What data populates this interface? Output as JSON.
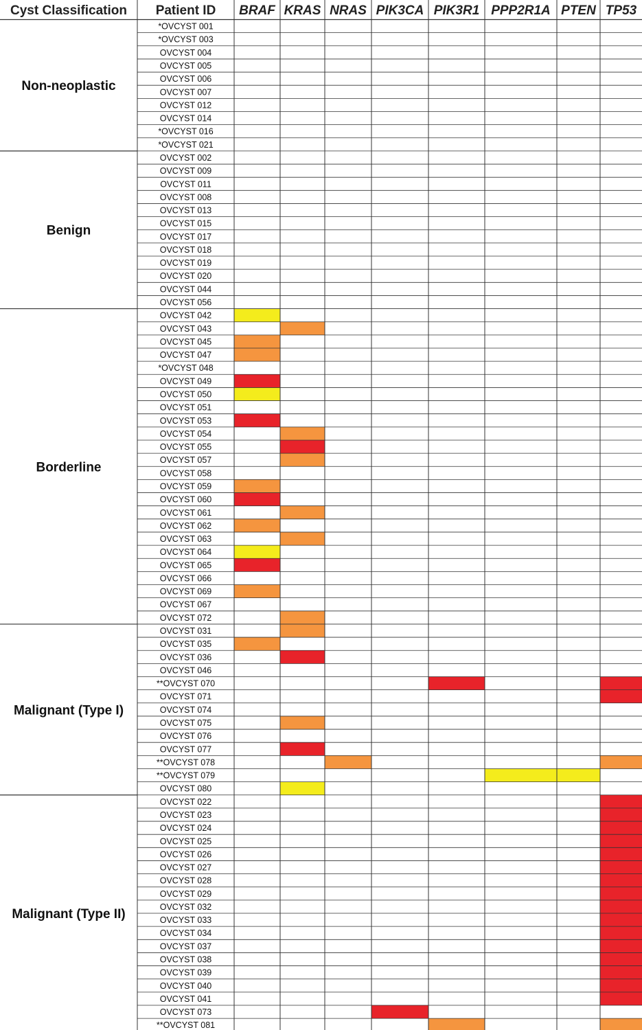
{
  "chart_data": {
    "type": "heatmap",
    "columns": [
      "Cyst Classification",
      "Patient ID"
    ],
    "genes": [
      "BRAF",
      "KRAS",
      "NRAS",
      "PIK3CA",
      "PIK3R1",
      "PPP2R1A",
      "PTEN",
      "TP53"
    ],
    "level_colors": {
      "high": "#e8232a",
      "medium": "#f5953f",
      "low": "#f4ec1c"
    },
    "groups": [
      {
        "name": "Non-neoplastic",
        "rows": [
          {
            "id": "*OVCYST 001",
            "cells": {}
          },
          {
            "id": "*OVCYST 003",
            "cells": {}
          },
          {
            "id": "OVCYST 004",
            "cells": {}
          },
          {
            "id": "OVCYST 005",
            "cells": {}
          },
          {
            "id": "OVCYST 006",
            "cells": {}
          },
          {
            "id": "OVCYST 007",
            "cells": {}
          },
          {
            "id": "OVCYST 012",
            "cells": {}
          },
          {
            "id": "OVCYST 014",
            "cells": {}
          },
          {
            "id": "*OVCYST 016",
            "cells": {}
          },
          {
            "id": "*OVCYST 021",
            "cells": {}
          }
        ]
      },
      {
        "name": "Benign",
        "rows": [
          {
            "id": "OVCYST 002",
            "cells": {}
          },
          {
            "id": "OVCYST 009",
            "cells": {}
          },
          {
            "id": "OVCYST 011",
            "cells": {}
          },
          {
            "id": "OVCYST 008",
            "cells": {}
          },
          {
            "id": "OVCYST 013",
            "cells": {}
          },
          {
            "id": "OVCYST 015",
            "cells": {}
          },
          {
            "id": "OVCYST 017",
            "cells": {}
          },
          {
            "id": "OVCYST 018",
            "cells": {}
          },
          {
            "id": "OVCYST 019",
            "cells": {}
          },
          {
            "id": "OVCYST 020",
            "cells": {}
          },
          {
            "id": "OVCYST 044",
            "cells": {}
          },
          {
            "id": "OVCYST 056",
            "cells": {}
          }
        ]
      },
      {
        "name": "Borderline",
        "rows": [
          {
            "id": "OVCYST 042",
            "cells": {
              "BRAF": "low"
            }
          },
          {
            "id": "OVCYST 043",
            "cells": {
              "KRAS": "medium"
            }
          },
          {
            "id": "OVCYST 045",
            "cells": {
              "BRAF": "medium"
            }
          },
          {
            "id": "OVCYST 047",
            "cells": {
              "BRAF": "medium"
            }
          },
          {
            "id": "*OVCYST 048",
            "cells": {}
          },
          {
            "id": "OVCYST 049",
            "cells": {
              "BRAF": "high"
            }
          },
          {
            "id": "OVCYST 050",
            "cells": {
              "BRAF": "low"
            }
          },
          {
            "id": "OVCYST 051",
            "cells": {}
          },
          {
            "id": "OVCYST 053",
            "cells": {
              "BRAF": "high"
            }
          },
          {
            "id": "OVCYST 054",
            "cells": {
              "KRAS": "medium"
            }
          },
          {
            "id": "OVCYST 055",
            "cells": {
              "KRAS": "high"
            }
          },
          {
            "id": "OVCYST 057",
            "cells": {
              "KRAS": "medium"
            }
          },
          {
            "id": "OVCYST 058",
            "cells": {}
          },
          {
            "id": "OVCYST 059",
            "cells": {
              "BRAF": "medium"
            }
          },
          {
            "id": "OVCYST 060",
            "cells": {
              "BRAF": "high"
            }
          },
          {
            "id": "OVCYST 061",
            "cells": {
              "KRAS": "medium"
            }
          },
          {
            "id": "OVCYST 062",
            "cells": {
              "BRAF": "medium"
            }
          },
          {
            "id": "OVCYST 063",
            "cells": {
              "KRAS": "medium"
            }
          },
          {
            "id": "OVCYST 064",
            "cells": {
              "BRAF": "low"
            }
          },
          {
            "id": "OVCYST 065",
            "cells": {
              "BRAF": "high"
            }
          },
          {
            "id": "OVCYST 066",
            "cells": {}
          },
          {
            "id": "OVCYST 069",
            "cells": {
              "BRAF": "medium"
            }
          },
          {
            "id": "OVCYST 067",
            "cells": {}
          },
          {
            "id": "OVCYST 072",
            "cells": {
              "KRAS": "medium"
            }
          }
        ]
      },
      {
        "name": "Malignant (Type I)",
        "rows": [
          {
            "id": "OVCYST 031",
            "cells": {
              "KRAS": "medium"
            }
          },
          {
            "id": "OVCYST 035",
            "cells": {
              "BRAF": "medium"
            }
          },
          {
            "id": "OVCYST 036",
            "cells": {
              "KRAS": "high"
            }
          },
          {
            "id": "OVCYST 046",
            "cells": {}
          },
          {
            "id": "**OVCYST 070",
            "cells": {
              "PIK3R1": "high",
              "TP53": "high"
            }
          },
          {
            "id": "OVCYST 071",
            "cells": {
              "TP53": "high"
            }
          },
          {
            "id": "OVCYST 074",
            "cells": {}
          },
          {
            "id": "OVCYST 075",
            "cells": {
              "KRAS": "medium"
            }
          },
          {
            "id": "OVCYST 076",
            "cells": {}
          },
          {
            "id": "OVCYST 077",
            "cells": {
              "KRAS": "high"
            }
          },
          {
            "id": "**OVCYST 078",
            "cells": {
              "NRAS": "medium",
              "TP53": "medium"
            }
          },
          {
            "id": "**OVCYST 079",
            "cells": {
              "PPP2R1A": "low",
              "PTEN": "low"
            }
          },
          {
            "id": "OVCYST 080",
            "cells": {
              "KRAS": "low"
            }
          }
        ]
      },
      {
        "name": "Malignant (Type II)",
        "rows": [
          {
            "id": "OVCYST 022",
            "cells": {
              "TP53": "high"
            }
          },
          {
            "id": "OVCYST 023",
            "cells": {
              "TP53": "high"
            }
          },
          {
            "id": "OVCYST 024",
            "cells": {
              "TP53": "high"
            }
          },
          {
            "id": "OVCYST 025",
            "cells": {
              "TP53": "high"
            }
          },
          {
            "id": "OVCYST 026",
            "cells": {
              "TP53": "high"
            }
          },
          {
            "id": "OVCYST 027",
            "cells": {
              "TP53": "high"
            }
          },
          {
            "id": "OVCYST 028",
            "cells": {
              "TP53": "high"
            }
          },
          {
            "id": "OVCYST 029",
            "cells": {
              "TP53": "high"
            }
          },
          {
            "id": "OVCYST 032",
            "cells": {
              "TP53": "high"
            }
          },
          {
            "id": "OVCYST 033",
            "cells": {
              "TP53": "high"
            }
          },
          {
            "id": "OVCYST 034",
            "cells": {
              "TP53": "high"
            }
          },
          {
            "id": "OVCYST 037",
            "cells": {
              "TP53": "high"
            }
          },
          {
            "id": "OVCYST 038",
            "cells": {
              "TP53": "high"
            }
          },
          {
            "id": "OVCYST 039",
            "cells": {
              "TP53": "high"
            }
          },
          {
            "id": "OVCYST 040",
            "cells": {
              "TP53": "high"
            }
          },
          {
            "id": "OVCYST 041",
            "cells": {
              "TP53": "high"
            }
          },
          {
            "id": "OVCYST 073",
            "cells": {
              "PIK3CA": "high"
            }
          },
          {
            "id": "**OVCYST 081",
            "cells": {
              "PIK3R1": "medium",
              "TP53": "medium"
            }
          }
        ]
      }
    ]
  }
}
